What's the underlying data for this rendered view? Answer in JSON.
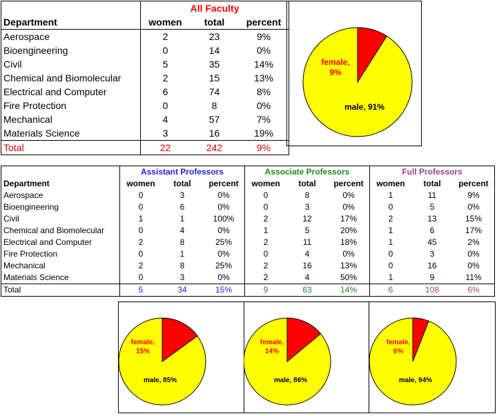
{
  "all_faculty": {
    "title": "All Faculty",
    "headers": {
      "department": "Department",
      "women": "women",
      "total": "total",
      "percent": "percent"
    },
    "rows": [
      {
        "dept": "Aerospace",
        "women": "2",
        "total": "23",
        "percent": "9%"
      },
      {
        "dept": "Bioengineering",
        "women": "0",
        "total": "14",
        "percent": "0%"
      },
      {
        "dept": "Civil",
        "women": "5",
        "total": "35",
        "percent": "14%"
      },
      {
        "dept": "Chemical and Biomolecular",
        "women": "2",
        "total": "15",
        "percent": "13%"
      },
      {
        "dept": "Electrical and Computer",
        "women": "6",
        "total": "74",
        "percent": "8%"
      },
      {
        "dept": "Fire Protection",
        "women": "0",
        "total": "8",
        "percent": "0%"
      },
      {
        "dept": "Mechanical",
        "women": "4",
        "total": "57",
        "percent": "7%"
      },
      {
        "dept": "Materials Science",
        "women": "3",
        "total": "16",
        "percent": "19%"
      }
    ],
    "total": {
      "label": "Total",
      "women": "22",
      "total": "242",
      "percent": "9%"
    }
  },
  "ranks": {
    "headers": {
      "department": "Department",
      "women": "women",
      "total": "total",
      "percent": "percent"
    },
    "titles": [
      "Assistant Professors",
      "Associate Professors",
      "Full Professors"
    ],
    "departments": [
      "Aerospace",
      "Bioengineering",
      "Civil",
      "Chemical and Biomolecular",
      "Electrical and Computer",
      "Fire Protection",
      "Mechanical",
      "Materials Science"
    ],
    "assistant": [
      [
        "0",
        "3",
        "0%"
      ],
      [
        "0",
        "6",
        "0%"
      ],
      [
        "1",
        "1",
        "100%"
      ],
      [
        "0",
        "4",
        "0%"
      ],
      [
        "2",
        "8",
        "25%"
      ],
      [
        "0",
        "1",
        "0%"
      ],
      [
        "2",
        "8",
        "25%"
      ],
      [
        "0",
        "3",
        "0%"
      ]
    ],
    "associate": [
      [
        "0",
        "8",
        "0%"
      ],
      [
        "0",
        "3",
        "0%"
      ],
      [
        "2",
        "12",
        "17%"
      ],
      [
        "1",
        "5",
        "20%"
      ],
      [
        "2",
        "11",
        "18%"
      ],
      [
        "0",
        "4",
        "0%"
      ],
      [
        "2",
        "16",
        "13%"
      ],
      [
        "2",
        "4",
        "50%"
      ]
    ],
    "full": [
      [
        "1",
        "11",
        "9%"
      ],
      [
        "0",
        "5",
        "0%"
      ],
      [
        "2",
        "13",
        "15%"
      ],
      [
        "1",
        "6",
        "17%"
      ],
      [
        "1",
        "45",
        "2%"
      ],
      [
        "0",
        "3",
        "0%"
      ],
      [
        "0",
        "16",
        "0%"
      ],
      [
        "1",
        "9",
        "11%"
      ]
    ],
    "totals": {
      "label": "Total",
      "assistant": [
        "5",
        "34",
        "15%"
      ],
      "associate": [
        "9",
        "63",
        "14%"
      ],
      "full": [
        "6",
        "108",
        "6%"
      ]
    }
  },
  "colors": {
    "female": "#ff0000",
    "male": "#ffff00",
    "red_text": "#ff0000"
  },
  "chart_data": [
    {
      "type": "pie",
      "categories": [
        "female",
        "male"
      ],
      "values": [
        9,
        91
      ],
      "labels": [
        "female, 9%",
        "male, 91%"
      ]
    },
    {
      "type": "pie",
      "categories": [
        "female",
        "male"
      ],
      "values": [
        15,
        85
      ],
      "labels": [
        "female, 15%",
        "male, 85%"
      ]
    },
    {
      "type": "pie",
      "categories": [
        "female",
        "male"
      ],
      "values": [
        14,
        86
      ],
      "labels": [
        "female, 14%",
        "male, 86%"
      ]
    },
    {
      "type": "pie",
      "categories": [
        "female",
        "male"
      ],
      "values": [
        6,
        94
      ],
      "labels": [
        "female, 6%",
        "male, 94%"
      ]
    }
  ]
}
